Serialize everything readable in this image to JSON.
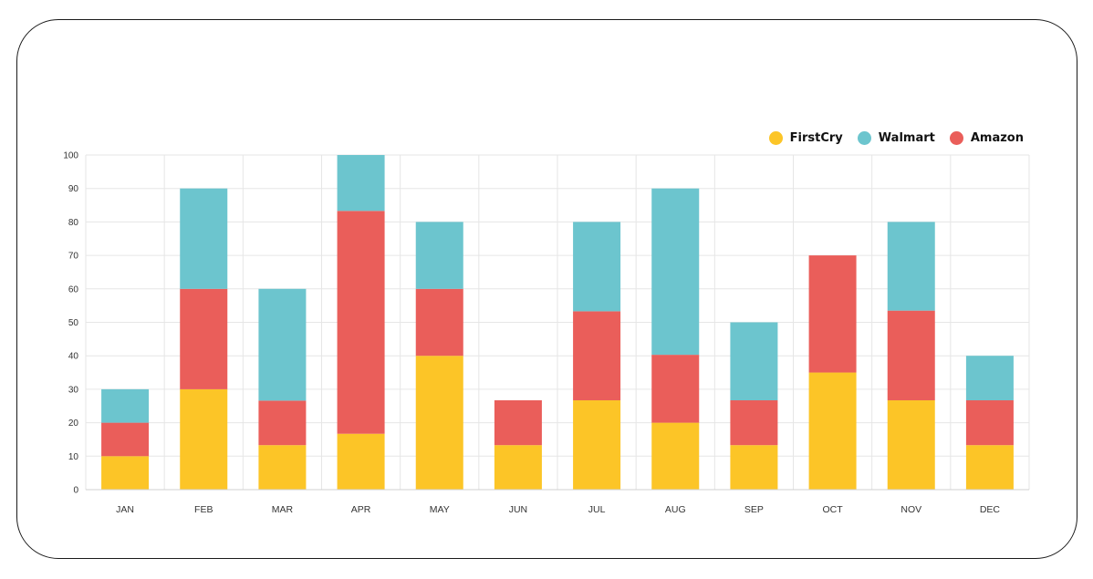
{
  "chart_data": {
    "type": "bar",
    "stacked": true,
    "categories": [
      "JAN",
      "FEB",
      "MAR",
      "APR",
      "MAY",
      "JUN",
      "JUL",
      "AUG",
      "SEP",
      "OCT",
      "NOV",
      "DEC"
    ],
    "series": [
      {
        "name": "FirstCry",
        "color": "#fcc527",
        "values": [
          10,
          30,
          13.3,
          16.7,
          40,
          13.3,
          26.7,
          20,
          13.3,
          35,
          26.7,
          13.3
        ]
      },
      {
        "name": "Amazon",
        "color": "#ea5e5a",
        "values": [
          10,
          30,
          13.3,
          66.6,
          20,
          13.4,
          26.6,
          20.3,
          13.4,
          35,
          26.8,
          13.4
        ]
      },
      {
        "name": "Walmart",
        "color": "#6cc5ce",
        "values": [
          10,
          30,
          33.4,
          16.7,
          20,
          0,
          26.7,
          49.7,
          23.3,
          0,
          26.5,
          13.3
        ]
      }
    ],
    "legend_order": [
      "FirstCry",
      "Walmart",
      "Amazon"
    ],
    "yticks": [
      0,
      10,
      20,
      30,
      40,
      50,
      60,
      70,
      80,
      90,
      100
    ],
    "ylim": [
      0,
      100
    ],
    "grid": true,
    "legend_position": "top-right"
  }
}
